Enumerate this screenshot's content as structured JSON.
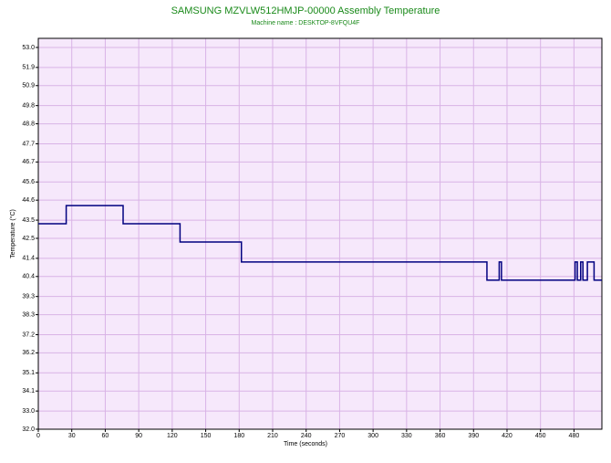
{
  "chart_data": {
    "type": "line",
    "title": "SAMSUNG MZVLW512HMJP-00000 Assembly Temperature",
    "subtitle": "Machine name : DESKTOP-8VFQU4F",
    "x_label": "Time (seconds)",
    "y_label": "Temperature (°C)",
    "x": [
      0,
      25,
      25,
      76,
      76,
      127,
      127,
      182,
      182,
      402,
      402,
      413,
      413,
      415,
      415,
      481,
      481,
      483,
      483,
      486,
      486,
      488,
      488,
      492,
      492,
      498,
      498,
      505
    ],
    "series": [
      {
        "color": "#000080",
        "values": [
          43.3,
          43.3,
          44.3,
          44.3,
          43.3,
          43.3,
          42.3,
          42.3,
          41.2,
          41.2,
          40.2,
          40.2,
          41.2,
          41.2,
          40.2,
          40.2,
          41.2,
          41.2,
          40.2,
          40.2,
          41.2,
          41.2,
          40.2,
          40.2,
          41.2,
          41.2,
          40.2,
          40.2
        ]
      }
    ],
    "xlim": [
      0,
      505
    ],
    "xticks": [
      0,
      30,
      60,
      90,
      120,
      150,
      180,
      210,
      240,
      270,
      300,
      330,
      360,
      390,
      420,
      450,
      480
    ],
    "ylim": [
      32,
      53.5
    ],
    "yticks": [
      {
        "value": 32,
        "label": "32.0"
      },
      {
        "value": 33,
        "label": "33.0"
      },
      34.1,
      35.1,
      36.2,
      37.2,
      38.3,
      39.3,
      40.4,
      41.4,
      42.5,
      43.5,
      44.6,
      45.6,
      46.7,
      47.7,
      48.8,
      49.8,
      50.9,
      51.9,
      {
        "value": 53,
        "label": "53.0"
      }
    ],
    "grid": true
  }
}
